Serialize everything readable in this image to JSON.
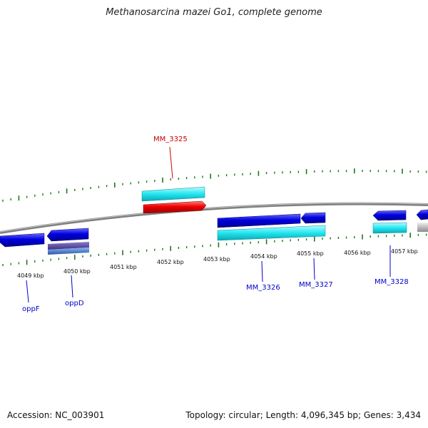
{
  "title": "Methanosarcina mazei Go1, complete genome",
  "accession": "Accession: NC_003901",
  "summary": "Topology: circular; Length: 4,096,345 bp; Genes: 3,434",
  "colors": {
    "backbone": "#808080",
    "tick": "#1a7a1a",
    "gene_blue": "#0000dd",
    "gene_cyan": "#22e6f0",
    "gene_red": "#ee0000",
    "gene_gray": "#b8b8b8",
    "label_blue": "#0000cc",
    "label_red": "#cc0000"
  },
  "kbp_labels": [
    "4049 kbp",
    "4050 kbp",
    "4051 kbp",
    "4052 kbp",
    "4053 kbp",
    "4054 kbp",
    "4055 kbp",
    "4056 kbp",
    "4057 kbp"
  ],
  "gene_labels": {
    "oppF": "oppF",
    "oppD": "oppD",
    "mm3325": "MM_3325",
    "mm3326": "MM_3326",
    "mm3327": "MM_3327",
    "mm3328": "MM_3328"
  }
}
